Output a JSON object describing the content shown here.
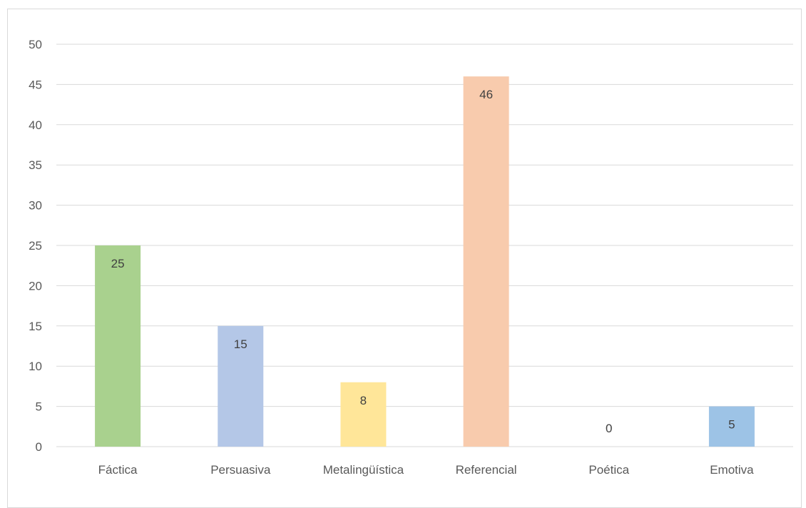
{
  "chart_data": {
    "type": "bar",
    "title": "",
    "xlabel": "",
    "ylabel": "",
    "categories": [
      "Fáctica",
      "Persuasiva",
      "Metalingüística",
      "Referencial",
      "Poética",
      "Emotiva"
    ],
    "values": [
      25,
      15,
      8,
      46,
      0,
      5
    ],
    "data_labels": [
      "25",
      "15",
      "8",
      "46",
      "0",
      "5"
    ],
    "colors": [
      "#a9d18e",
      "#b4c7e7",
      "#ffe699",
      "#f8cbad",
      "#d9d9d9",
      "#9dc3e6"
    ],
    "ylim": [
      0,
      50
    ],
    "yticks": [
      "0",
      "5",
      "10",
      "15",
      "20",
      "25",
      "30",
      "35",
      "40",
      "45",
      "50"
    ],
    "grid": true,
    "gridline_color": "#d9d9d9",
    "legend": "none"
  }
}
